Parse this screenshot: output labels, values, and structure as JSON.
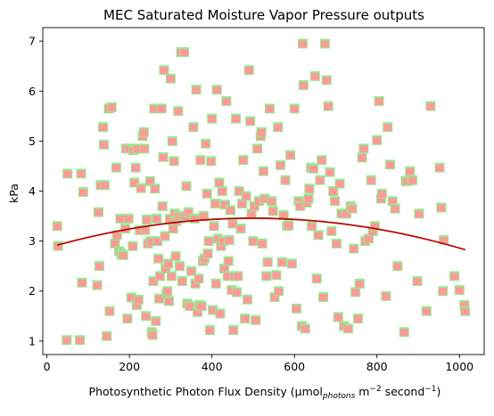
{
  "chart_data": {
    "type": "scatter",
    "title": "MEC Saturated Moisture Vapor Pressure outputs",
    "xlabel": {
      "prefix": "Photosynthetic Photon Flux Density (µmol",
      "subscript": "photons",
      "middle": " m",
      "sup1": "−2",
      "after": " second",
      "sup2": "−1",
      "suffix": ")"
    },
    "ylabel": "kPa",
    "xlim": [
      -10,
      1060
    ],
    "ylim": [
      0.73,
      7.27
    ],
    "x_ticks": [
      0,
      200,
      400,
      600,
      800,
      1000
    ],
    "x_tick_labels": [
      "0",
      "200",
      "400",
      "600",
      "800",
      "1000"
    ],
    "y_ticks": [
      1,
      2,
      3,
      4,
      5,
      6,
      7
    ],
    "y_tick_labels": [
      "1",
      "2",
      "3",
      "4",
      "5",
      "6",
      "7"
    ],
    "grid": false,
    "colors": {
      "underlay_marker": "#90ee90",
      "overlay_marker": "#ff9999",
      "trend_line_green": "#228b22",
      "trend_line_red": "#cc0000"
    },
    "series": [
      {
        "marker": "square",
        "points": [
          [
            25,
            3.3
          ],
          [
            27,
            2.9
          ],
          [
            48,
            1.02
          ],
          [
            50,
            4.35
          ],
          [
            80,
            1.02
          ],
          [
            83,
            4.35
          ],
          [
            85,
            2.17
          ],
          [
            88,
            3.98
          ],
          [
            122,
            2.12
          ],
          [
            125,
            3.58
          ],
          [
            127,
            2.5
          ],
          [
            130,
            4.12
          ],
          [
            136,
            5.28
          ],
          [
            138,
            4.93
          ],
          [
            140,
            4.12
          ],
          [
            145,
            1.1
          ],
          [
            150,
            5.65
          ],
          [
            152,
            1.6
          ],
          [
            157,
            5.68
          ],
          [
            165,
            2.95
          ],
          [
            168,
            4.47
          ],
          [
            170,
            3.12
          ],
          [
            175,
            2.8
          ],
          [
            178,
            3.45
          ],
          [
            180,
            2.75
          ],
          [
            182,
            2.72
          ],
          [
            185,
            2.72
          ],
          [
            190,
            3.25
          ],
          [
            192,
            4.85
          ],
          [
            195,
            1.45
          ],
          [
            198,
            3.45
          ],
          [
            200,
            4.85
          ],
          [
            205,
            1.87
          ],
          [
            208,
            2.9
          ],
          [
            210,
            4.82
          ],
          [
            212,
            4.17
          ],
          [
            215,
            4.47
          ],
          [
            218,
            1.72
          ],
          [
            220,
            4.85
          ],
          [
            222,
            1.83
          ],
          [
            225,
            3.22
          ],
          [
            228,
            4.06
          ],
          [
            232,
            5.1
          ],
          [
            235,
            5.18
          ],
          [
            236,
            4.85
          ],
          [
            238,
            3.22
          ],
          [
            240,
            1.5
          ],
          [
            242,
            3.43
          ],
          [
            245,
            2.95
          ],
          [
            250,
            4.2
          ],
          [
            252,
            3.0
          ],
          [
            254,
            1.18
          ],
          [
            256,
            1.12
          ],
          [
            258,
            2.2
          ],
          [
            260,
            5.65
          ],
          [
            262,
            4.05
          ],
          [
            264,
            1.4
          ],
          [
            266,
            3.45
          ],
          [
            268,
            3.0
          ],
          [
            270,
            2.65
          ],
          [
            272,
            1.85
          ],
          [
            274,
            2.3
          ],
          [
            278,
            5.65
          ],
          [
            280,
            3.7
          ],
          [
            282,
            4.68
          ],
          [
            284,
            6.42
          ],
          [
            286,
            3.1
          ],
          [
            288,
            2.45
          ],
          [
            290,
            1.95
          ],
          [
            292,
            2.0
          ],
          [
            294,
            2.55
          ],
          [
            296,
            1.8
          ],
          [
            298,
            3.45
          ],
          [
            300,
            6.25
          ],
          [
            302,
            2.3
          ],
          [
            304,
            5.0
          ],
          [
            306,
            3.25
          ],
          [
            308,
            4.6
          ],
          [
            310,
            3.55
          ],
          [
            312,
            2.7
          ],
          [
            314,
            3.4
          ],
          [
            318,
            5.6
          ],
          [
            320,
            3.5
          ],
          [
            322,
            2.5
          ],
          [
            325,
            6.78
          ],
          [
            328,
            2.2
          ],
          [
            330,
            3.5
          ],
          [
            333,
            6.78
          ],
          [
            335,
            3.5
          ],
          [
            338,
            4.1
          ],
          [
            340,
            1.75
          ],
          [
            343,
            3.58
          ],
          [
            346,
            1.7
          ],
          [
            350,
            2.4
          ],
          [
            355,
            5.28
          ],
          [
            358,
            3.45
          ],
          [
            360,
            2.15
          ],
          [
            362,
            6.03
          ],
          [
            365,
            1.58
          ],
          [
            368,
            2.25
          ],
          [
            370,
            1.72
          ],
          [
            372,
            4.62
          ],
          [
            375,
            1.7
          ],
          [
            378,
            2.6
          ],
          [
            380,
            3.5
          ],
          [
            382,
            2.65
          ],
          [
            385,
            4.95
          ],
          [
            388,
            3.95
          ],
          [
            390,
            2.75
          ],
          [
            392,
            3.0
          ],
          [
            395,
            1.22
          ],
          [
            398,
            4.6
          ],
          [
            400,
            5.45
          ],
          [
            402,
            1.62
          ],
          [
            405,
            3.3
          ],
          [
            408,
            3.75
          ],
          [
            410,
            2.15
          ],
          [
            412,
            6.03
          ],
          [
            415,
            3.05
          ],
          [
            418,
            4.17
          ],
          [
            420,
            1.55
          ],
          [
            422,
            2.9
          ],
          [
            425,
            4.0
          ],
          [
            428,
            3.0
          ],
          [
            430,
            2.45
          ],
          [
            432,
            3.73
          ],
          [
            435,
            5.8
          ],
          [
            438,
            2.3
          ],
          [
            440,
            2.6
          ],
          [
            442,
            3.02
          ],
          [
            445,
            3.62
          ],
          [
            448,
            2.02
          ],
          [
            450,
            3.35
          ],
          [
            452,
            1.22
          ],
          [
            455,
            2.3
          ],
          [
            458,
            5.45
          ],
          [
            460,
            1.98
          ],
          [
            463,
            2.3
          ],
          [
            466,
            4.0
          ],
          [
            470,
            3.25
          ],
          [
            473,
            3.75
          ],
          [
            476,
            4.62
          ],
          [
            480,
            1.45
          ],
          [
            483,
            3.9
          ],
          [
            486,
            1.83
          ],
          [
            490,
            6.42
          ],
          [
            493,
            5.4
          ],
          [
            496,
            3.55
          ],
          [
            500,
            3.0
          ],
          [
            503,
            3.7
          ],
          [
            506,
            1.42
          ],
          [
            510,
            4.85
          ],
          [
            514,
            3.8
          ],
          [
            518,
            5.1
          ],
          [
            520,
            5.18
          ],
          [
            522,
            2.95
          ],
          [
            525,
            4.4
          ],
          [
            528,
            3.85
          ],
          [
            532,
            2.3
          ],
          [
            535,
            2.58
          ],
          [
            540,
            5.65
          ],
          [
            545,
            3.8
          ],
          [
            548,
            3.6
          ],
          [
            552,
            1.88
          ],
          [
            556,
            2.32
          ],
          [
            560,
            5.28
          ],
          [
            562,
            2.0
          ],
          [
            566,
            4.52
          ],
          [
            570,
            2.58
          ],
          [
            574,
            3.52
          ],
          [
            578,
            4.22
          ],
          [
            582,
            3.3
          ],
          [
            586,
            3.32
          ],
          [
            590,
            4.72
          ],
          [
            594,
            2.55
          ],
          [
            600,
            5.65
          ],
          [
            605,
            1.65
          ],
          [
            610,
            3.8
          ],
          [
            614,
            3.7
          ],
          [
            618,
            1.3
          ],
          [
            620,
            6.95
          ],
          [
            622,
            6.12
          ],
          [
            626,
            1.25
          ],
          [
            630,
            3.77
          ],
          [
            634,
            3.85
          ],
          [
            636,
            4.05
          ],
          [
            640,
            4.47
          ],
          [
            642,
            3.3
          ],
          [
            646,
            4.45
          ],
          [
            650,
            6.3
          ],
          [
            654,
            2.25
          ],
          [
            658,
            3.12
          ],
          [
            662,
            4.22
          ],
          [
            666,
            4.62
          ],
          [
            670,
            1.88
          ],
          [
            674,
            6.95
          ],
          [
            678,
            6.22
          ],
          [
            682,
            5.7
          ],
          [
            686,
            4.38
          ],
          [
            690,
            3.2
          ],
          [
            694,
            4.0
          ],
          [
            698,
            3.8
          ],
          [
            702,
            2.95
          ],
          [
            706,
            1.48
          ],
          [
            710,
            4.15
          ],
          [
            714,
            3.55
          ],
          [
            720,
            1.3
          ],
          [
            726,
            3.55
          ],
          [
            730,
            1.25
          ],
          [
            736,
            3.7
          ],
          [
            740,
            3.65
          ],
          [
            744,
            2.85
          ],
          [
            748,
            1.98
          ],
          [
            754,
            1.45
          ],
          [
            758,
            2.15
          ],
          [
            764,
            4.67
          ],
          [
            768,
            4.85
          ],
          [
            772,
            3.0
          ],
          [
            780,
            3.05
          ],
          [
            786,
            4.22
          ],
          [
            790,
            3.2
          ],
          [
            795,
            3.3
          ],
          [
            800,
            5.02
          ],
          [
            805,
            5.8
          ],
          [
            810,
            3.85
          ],
          [
            812,
            3.95
          ],
          [
            822,
            1.9
          ],
          [
            826,
            5.28
          ],
          [
            832,
            4.53
          ],
          [
            838,
            3.8
          ],
          [
            844,
            3.65
          ],
          [
            850,
            2.5
          ],
          [
            866,
            1.18
          ],
          [
            870,
            4.2
          ],
          [
            874,
            4.2
          ],
          [
            880,
            4.4
          ],
          [
            886,
            4.22
          ],
          [
            898,
            2.2
          ],
          [
            902,
            3.55
          ],
          [
            920,
            1.6
          ],
          [
            930,
            5.7
          ],
          [
            952,
            4.47
          ],
          [
            956,
            3.67
          ],
          [
            960,
            2.0
          ],
          [
            962,
            3.02
          ],
          [
            988,
            2.3
          ],
          [
            1000,
            2.02
          ],
          [
            1012,
            1.72
          ],
          [
            1014,
            1.6
          ]
        ]
      }
    ],
    "trend_lines": [
      {
        "color": "green",
        "x": [
          25,
          1014
        ],
        "poly": [
          2.86,
          0.0024,
          -2.4e-06
        ]
      },
      {
        "color": "red",
        "x": [
          25,
          1014
        ],
        "poly": [
          2.86,
          0.00238,
          -2.38e-06
        ]
      }
    ]
  }
}
